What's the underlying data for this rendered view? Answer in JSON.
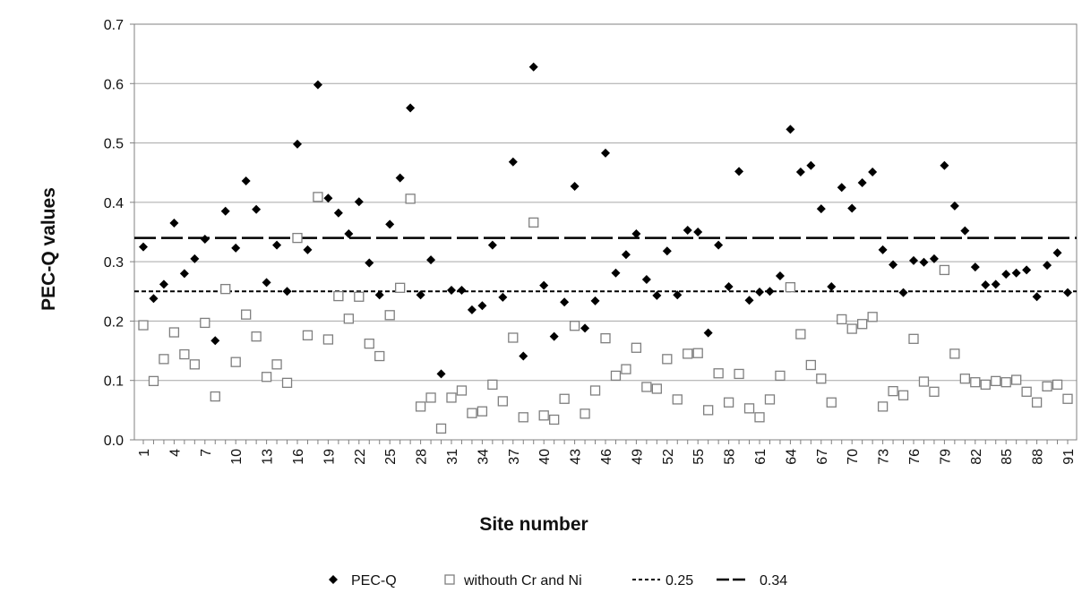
{
  "chart_data": {
    "type": "scatter",
    "xlabel": "Site number",
    "ylabel": "PEC-Q values",
    "x_ticks": [
      "1",
      "4",
      "7",
      "10",
      "13",
      "16",
      "19",
      "22",
      "25",
      "28",
      "31",
      "34",
      "37",
      "40",
      "43",
      "46",
      "49",
      "52",
      "55",
      "58",
      "61",
      "64",
      "67",
      "70",
      "73",
      "76",
      "79",
      "82",
      "85",
      "88",
      "91"
    ],
    "y_ticks": [
      "0.0",
      "0.1",
      "0.2",
      "0.3",
      "0.4",
      "0.5",
      "0.6",
      "0.7"
    ],
    "xlim": [
      1,
      91
    ],
    "ylim": [
      0,
      0.7
    ],
    "grid": "horizontal",
    "legend_position": "bottom",
    "series": [
      {
        "name": "PEC-Q",
        "marker": "diamond",
        "color": "#000000",
        "values": [
          0.325,
          0.238,
          0.262,
          0.365,
          0.28,
          0.305,
          0.338,
          0.167,
          0.385,
          0.323,
          0.436,
          0.388,
          0.265,
          0.328,
          0.25,
          0.498,
          0.32,
          0.598,
          0.407,
          0.382,
          0.347,
          0.401,
          0.298,
          0.244,
          0.363,
          0.441,
          0.559,
          0.244,
          0.303,
          0.111,
          0.252,
          0.252,
          0.219,
          0.226,
          0.328,
          0.24,
          0.468,
          0.141,
          0.628,
          0.26,
          0.174,
          0.232,
          0.427,
          0.188,
          0.234,
          0.483,
          0.281,
          0.312,
          0.347,
          0.27,
          0.243,
          0.318,
          0.244,
          0.353,
          0.35,
          0.18,
          0.328,
          0.258,
          0.452,
          0.235,
          0.249,
          0.25,
          0.276,
          0.523,
          0.451,
          0.462,
          0.389,
          0.258,
          0.425,
          0.39,
          0.433,
          0.451,
          0.32,
          0.295,
          0.248,
          0.302,
          0.299,
          0.305,
          0.462,
          0.394,
          0.352,
          0.291,
          0.261,
          0.262,
          0.279,
          0.281,
          0.286,
          0.241,
          0.294,
          0.315,
          0.248
        ]
      },
      {
        "name": "withouth Cr and Ni",
        "marker": "square-open",
        "color": "#7f7f7f",
        "values": [
          0.193,
          0.099,
          0.136,
          0.181,
          0.144,
          0.127,
          0.197,
          0.073,
          0.254,
          0.131,
          0.211,
          0.174,
          0.106,
          0.127,
          0.096,
          0.34,
          0.176,
          0.409,
          0.169,
          0.242,
          0.204,
          0.241,
          0.162,
          0.141,
          0.21,
          0.256,
          0.406,
          0.056,
          0.071,
          0.019,
          0.071,
          0.083,
          0.045,
          0.048,
          0.093,
          0.065,
          0.172,
          0.038,
          0.366,
          0.041,
          0.034,
          0.069,
          0.192,
          0.044,
          0.083,
          0.171,
          0.108,
          0.119,
          0.155,
          0.089,
          0.086,
          0.136,
          0.068,
          0.145,
          0.146,
          0.05,
          0.112,
          0.063,
          0.111,
          0.053,
          0.038,
          0.068,
          0.108,
          0.257,
          0.178,
          0.126,
          0.103,
          0.063,
          0.203,
          0.187,
          0.195,
          0.207,
          0.056,
          0.082,
          0.075,
          0.17,
          0.098,
          0.081,
          0.286,
          0.145,
          0.103,
          0.097,
          0.093,
          0.099,
          0.097,
          0.101,
          0.081,
          0.063,
          0.09,
          0.093,
          0.069
        ]
      }
    ],
    "reference_lines": [
      {
        "name": "0.25",
        "value": 0.25,
        "style": "dashed-short"
      },
      {
        "name": "0.34",
        "value": 0.34,
        "style": "dashed-long"
      }
    ],
    "legend": [
      {
        "label": "PEC-Q",
        "marker": "diamond"
      },
      {
        "label": "withouth Cr and Ni",
        "marker": "square-open"
      },
      {
        "label": "0.25",
        "marker": "line-short-dash"
      },
      {
        "label": "0.34",
        "marker": "line-long-dash"
      }
    ]
  }
}
